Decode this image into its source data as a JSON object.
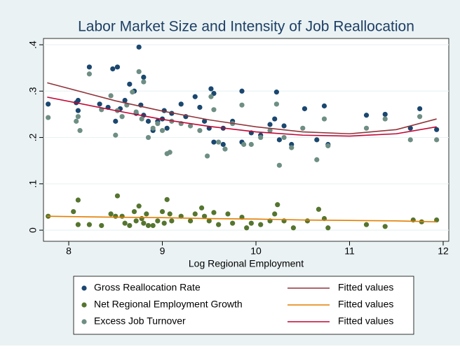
{
  "chart_data": {
    "type": "scatter",
    "title": "Labor Market Size and Intensity of Job Reallocation",
    "x_label": "Log Regional Employment",
    "xlim": [
      7.73,
      12.06
    ],
    "xticks": [
      8,
      9,
      10,
      11,
      12
    ],
    "ylim": [
      -0.024,
      0.4136
    ],
    "yticks": [
      0,
      {
        "value": 0.1,
        "label": ".1"
      },
      {
        "value": 0.2,
        "label": ".2"
      },
      {
        "value": 0.3,
        "label": ".3"
      },
      {
        "value": 0.4,
        "label": ".4"
      }
    ],
    "grid": true,
    "series": [
      {
        "name": "Gross Reallocation Rate",
        "kind": "scatter",
        "color": "#1a476f",
        "x": [
          7.78,
          8.08,
          8.1,
          8.1,
          8.22,
          8.33,
          8.42,
          8.47,
          8.52,
          8.5,
          8.55,
          8.6,
          8.65,
          8.7,
          8.72,
          8.75,
          8.77,
          8.8,
          8.8,
          8.85,
          8.9,
          8.95,
          9.0,
          9.02,
          9.05,
          9.1,
          9.2,
          9.25,
          9.35,
          9.4,
          9.45,
          9.5,
          9.52,
          9.55,
          9.55,
          9.65,
          9.65,
          9.75,
          9.85,
          9.85,
          9.95,
          10.05,
          10.15,
          10.2,
          10.22,
          10.25,
          10.3,
          10.38,
          10.52,
          10.65,
          10.73,
          10.77,
          11.18,
          11.38,
          11.65,
          11.75,
          11.93
        ],
        "values": [
          0.272,
          0.275,
          0.28,
          0.258,
          0.352,
          0.272,
          0.265,
          0.348,
          0.352,
          0.235,
          0.262,
          0.28,
          0.315,
          0.3,
          0.252,
          0.395,
          0.27,
          0.33,
          0.248,
          0.235,
          0.215,
          0.235,
          0.24,
          0.258,
          0.22,
          0.252,
          0.272,
          0.245,
          0.288,
          0.265,
          0.235,
          0.22,
          0.305,
          0.295,
          0.19,
          0.22,
          0.185,
          0.235,
          0.3,
          0.19,
          0.21,
          0.205,
          0.228,
          0.24,
          0.298,
          0.195,
          0.225,
          0.185,
          0.262,
          0.195,
          0.268,
          0.185,
          0.248,
          0.25,
          0.22,
          0.262,
          0.217
        ]
      },
      {
        "name": "Net Regional Employment Growth",
        "kind": "scatter",
        "color": "#55752f",
        "x": [
          7.78,
          8.05,
          8.1,
          8.1,
          8.22,
          8.35,
          8.45,
          8.5,
          8.52,
          8.57,
          8.6,
          8.65,
          8.7,
          8.72,
          8.75,
          8.78,
          8.8,
          8.83,
          8.85,
          8.9,
          8.95,
          9.0,
          9.02,
          9.05,
          9.08,
          9.1,
          9.2,
          9.3,
          9.35,
          9.42,
          9.45,
          9.5,
          9.55,
          9.6,
          9.7,
          9.75,
          9.85,
          9.9,
          9.95,
          10.05,
          10.15,
          10.2,
          10.23,
          10.3,
          10.4,
          10.55,
          10.67,
          10.73,
          10.77,
          11.18,
          11.38,
          11.68,
          11.77,
          11.93
        ],
        "values": [
          0.03,
          0.04,
          0.065,
          0.012,
          0.012,
          0.01,
          0.035,
          0.03,
          0.074,
          0.03,
          0.015,
          0.01,
          0.04,
          0.02,
          0.052,
          0.025,
          0.015,
          0.035,
          0.01,
          0.01,
          0.02,
          0.04,
          0.015,
          0.066,
          0.035,
          0.02,
          0.03,
          0.02,
          0.035,
          0.048,
          0.03,
          0.02,
          0.038,
          0.012,
          0.035,
          0.015,
          0.028,
          0.005,
          0.015,
          0.012,
          0.02,
          0.035,
          0.055,
          0.02,
          0.005,
          0.02,
          0.045,
          0.025,
          0.005,
          0.012,
          0.008,
          0.022,
          0.018,
          0.022
        ]
      },
      {
        "name": "Excess Job Turnover",
        "kind": "scatter",
        "color": "#6e8e84",
        "x": [
          7.78,
          8.08,
          8.1,
          8.12,
          8.22,
          8.35,
          8.45,
          8.5,
          8.52,
          8.57,
          8.62,
          8.68,
          8.72,
          8.75,
          8.78,
          8.8,
          8.85,
          8.9,
          8.95,
          9.0,
          9.05,
          9.08,
          9.1,
          9.2,
          9.3,
          9.4,
          9.48,
          9.52,
          9.55,
          9.6,
          9.67,
          9.75,
          9.85,
          9.87,
          9.95,
          10.05,
          10.15,
          10.22,
          10.25,
          10.3,
          10.38,
          10.5,
          10.65,
          10.73,
          10.77,
          11.18,
          11.38,
          11.65,
          11.75,
          11.93
        ],
        "values": [
          0.243,
          0.235,
          0.245,
          0.215,
          0.337,
          0.26,
          0.29,
          0.205,
          0.258,
          0.245,
          0.27,
          0.298,
          0.255,
          0.342,
          0.24,
          0.32,
          0.2,
          0.22,
          0.23,
          0.215,
          0.165,
          0.168,
          0.235,
          0.23,
          0.225,
          0.215,
          0.16,
          0.288,
          0.26,
          0.19,
          0.175,
          0.23,
          0.27,
          0.185,
          0.185,
          0.2,
          0.215,
          0.272,
          0.14,
          0.2,
          0.178,
          0.22,
          0.152,
          0.24,
          0.182,
          0.22,
          0.24,
          0.195,
          0.245,
          0.195
        ]
      },
      {
        "name": "Fitted values",
        "kind": "line",
        "color": "#90353b",
        "x": [
          7.77,
          8.5,
          9,
          9.5,
          10,
          10.5,
          11,
          11.5,
          11.93
        ],
        "values": [
          0.318,
          0.279,
          0.257,
          0.238,
          0.223,
          0.212,
          0.208,
          0.217,
          0.24
        ]
      },
      {
        "name": "Fitted values",
        "kind": "line",
        "color": "#e37e00",
        "x": [
          7.77,
          8.5,
          9,
          9.5,
          10,
          10.5,
          11,
          11.5,
          11.93
        ],
        "values": [
          0.03,
          0.028,
          0.027,
          0.025,
          0.024,
          0.022,
          0.021,
          0.02,
          0.018
        ]
      },
      {
        "name": "Fitted values",
        "kind": "line",
        "color": "#c10534",
        "x": [
          7.77,
          8.5,
          9,
          9.5,
          10,
          10.5,
          11,
          11.5,
          11.93
        ],
        "values": [
          0.287,
          0.258,
          0.239,
          0.224,
          0.212,
          0.205,
          0.203,
          0.208,
          0.223
        ]
      }
    ]
  }
}
